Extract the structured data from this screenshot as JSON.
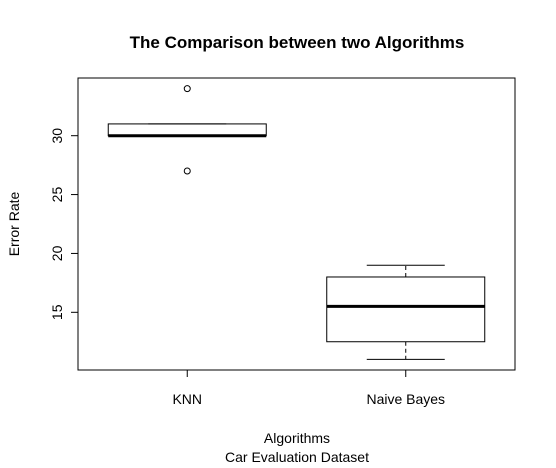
{
  "chart_data": {
    "type": "boxplot",
    "title": "The Comparison between two Algorithms",
    "xlabel": "Algorithms",
    "subtitle": "Car Evaluation Dataset",
    "ylabel": "Error Rate",
    "categories": [
      "KNN",
      "Naive Bayes"
    ],
    "ylim": [
      10.1,
      34.9
    ],
    "yticks": [
      15,
      20,
      25,
      30
    ],
    "grid": false,
    "boxes": [
      {
        "category": "KNN",
        "whisker_low": 30,
        "q1": 30,
        "median": 30,
        "q3": 31,
        "whisker_high": 31,
        "outliers": [
          34,
          27
        ]
      },
      {
        "category": "Naive Bayes",
        "whisker_low": 11,
        "q1": 12.5,
        "median": 15.5,
        "q3": 18,
        "whisker_high": 19,
        "outliers": []
      }
    ]
  }
}
